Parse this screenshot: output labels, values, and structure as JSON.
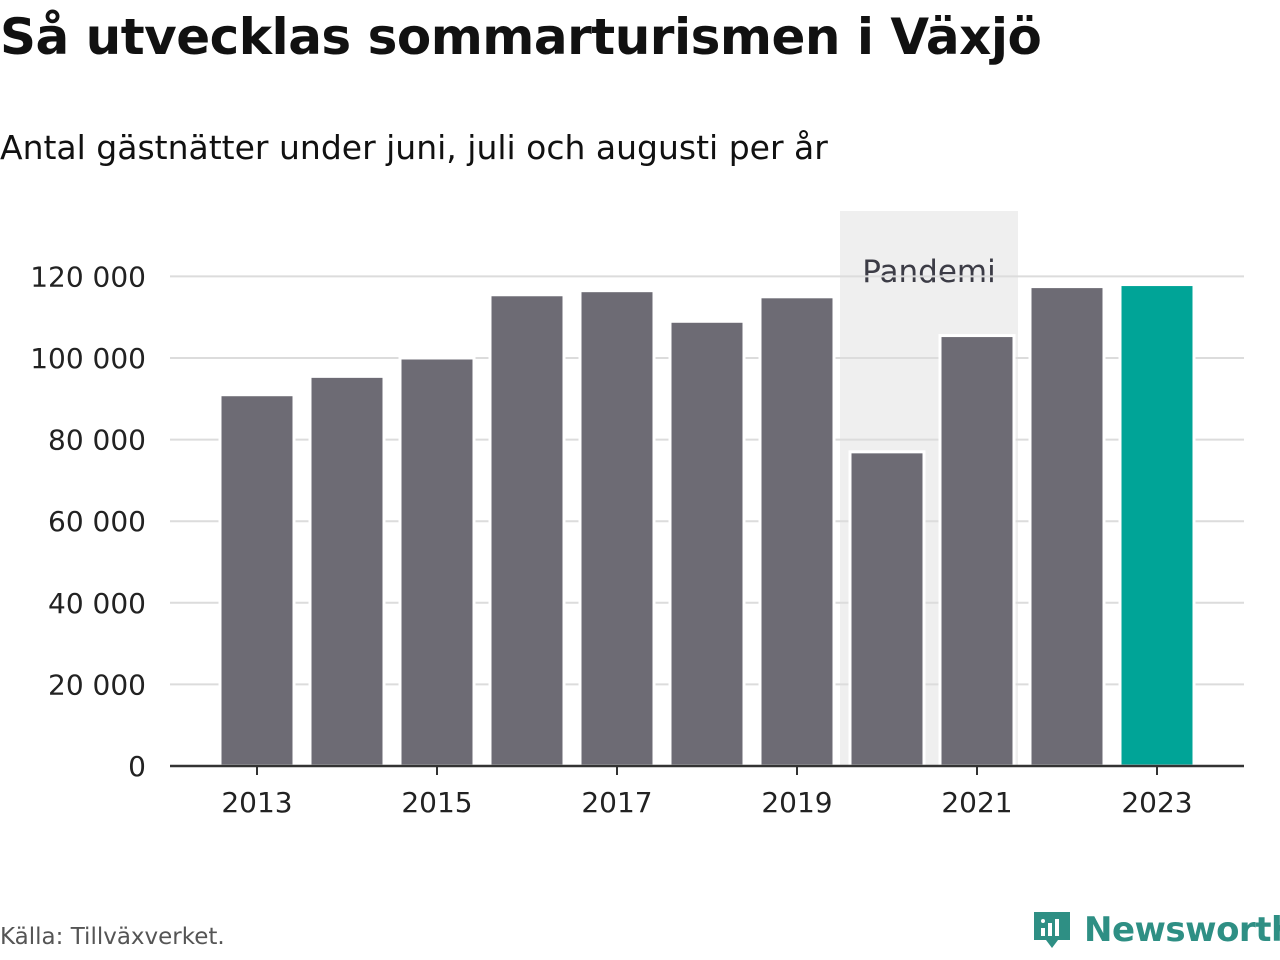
{
  "title": "Så utvecklas sommarturismen i Växjö",
  "subtitle": "Antal gästnätter under juni, juli och augusti per år",
  "source": "Källa: Tillväxverket.",
  "brand": {
    "name": "Newsworthy",
    "icon": "newsworthy-logo-icon",
    "color": "#2e8f84"
  },
  "chart_data": {
    "type": "bar",
    "categories": [
      "2013",
      "2014",
      "2015",
      "2016",
      "2017",
      "2018",
      "2019",
      "2020",
      "2021",
      "2022",
      "2023"
    ],
    "values": [
      91000,
      95500,
      100000,
      115500,
      116500,
      109000,
      115000,
      77000,
      105500,
      117500,
      118000
    ],
    "x_tick_labels": [
      "2013",
      "2015",
      "2017",
      "2019",
      "2021",
      "2023"
    ],
    "y_ticks": [
      0,
      20000,
      40000,
      60000,
      80000,
      100000,
      120000
    ],
    "y_tick_labels": [
      "0",
      "20 000",
      "40 000",
      "60 000",
      "80 000",
      "100 000",
      "120 000"
    ],
    "ylim": [
      0,
      130000
    ],
    "xlabel": "",
    "ylabel": "",
    "grid": "horizontal",
    "colors": {
      "bar": "#6d6b74",
      "highlight": "#00a497",
      "shade": "#efefef",
      "grid": "#dcdcdc",
      "axis": "#333333"
    },
    "highlight_category": "2023",
    "annotation": {
      "label": "Pandemi",
      "from": "2020",
      "to": "2021"
    }
  }
}
